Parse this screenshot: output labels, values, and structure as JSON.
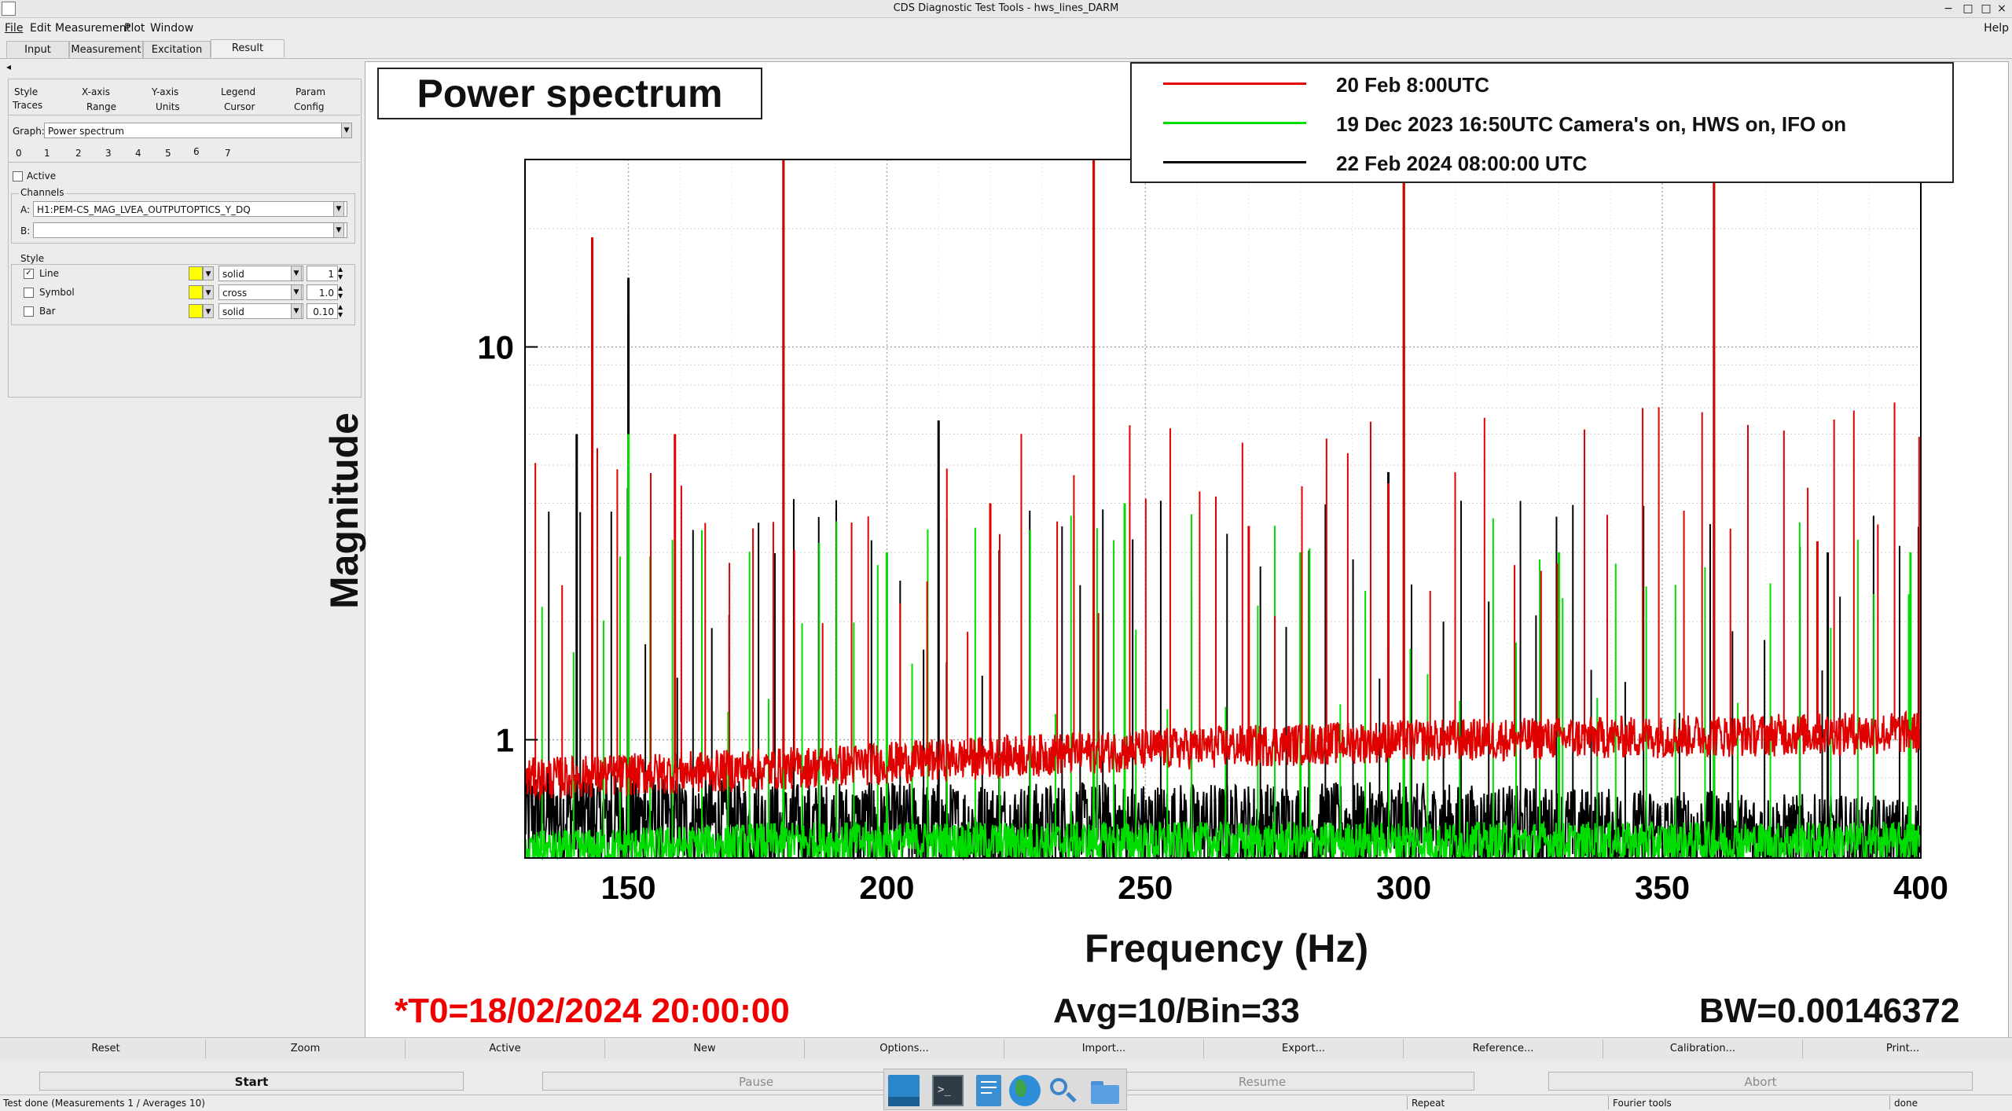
{
  "window": {
    "title": "CDS Diagnostic Test Tools - hws_lines_DARM",
    "minimize": "−",
    "maximize": "□",
    "restore": "□",
    "close": "×"
  },
  "menu": {
    "items": [
      "File",
      "Edit",
      "Measurement",
      "Plot",
      "Window"
    ],
    "help": "Help"
  },
  "tabs": [
    "Input",
    "Measurement",
    "Excitation",
    "Result"
  ],
  "left_panel": {
    "collapse_arrow": "◂",
    "option_tabs_row1": [
      "Style",
      "X-axis",
      "Y-axis",
      "Legend",
      "Param"
    ],
    "option_tabs_row2": [
      "Traces",
      "Range",
      "Units",
      "Cursor",
      "Config"
    ],
    "graph_label": "Graph:",
    "graph_value": "Power spectrum",
    "trace_numbers": [
      "0",
      "1",
      "2",
      "3",
      "4",
      "5",
      "6",
      "7"
    ],
    "active_label": "Active",
    "active_checked": false,
    "channels_label": "Channels",
    "channel_a_label": "A:",
    "channel_a_value": "H1:PEM-CS_MAG_LVEA_OUTPUTOPTICS_Y_DQ",
    "channel_b_label": "B:",
    "channel_b_value": "",
    "style_label": "Style",
    "style_rows": [
      {
        "label": "Line",
        "checked": true,
        "color": "#ffff00",
        "pattern": "solid",
        "size": "1"
      },
      {
        "label": "Symbol",
        "checked": false,
        "color": "#ffff00",
        "pattern": "cross",
        "size": "1.0"
      },
      {
        "label": "Bar",
        "checked": false,
        "color": "#ffff00",
        "pattern": "solid",
        "size": "0.10"
      }
    ]
  },
  "plot": {
    "title": "Power spectrum",
    "legend": [
      {
        "label": "20 Feb 8:00UTC",
        "color": "#e00000"
      },
      {
        "label": "19 Dec 2023 16:50UTC Camera's on, HWS on, IFO on",
        "color": "#00dd00"
      },
      {
        "label": "22 Feb 2024 08:00:00 UTC",
        "color": "#000000"
      }
    ],
    "t0": "*T0=18/02/2024 20:00:00",
    "avg": "Avg=10/Bin=33",
    "bw": "BW=0.00146372"
  },
  "chart_data": {
    "type": "line",
    "title": "Power spectrum",
    "xlabel": "Frequency (Hz)",
    "ylabel": "Magnitude",
    "xlim": [
      130,
      400
    ],
    "ylim": [
      0.5,
      30
    ],
    "y_scale": "log",
    "x_ticks": [
      150,
      200,
      250,
      300,
      350,
      400
    ],
    "y_ticks": [
      1,
      10
    ],
    "grid": true,
    "legend_position": "top-right",
    "series": [
      {
        "name": "20 Feb 8:00UTC",
        "color": "#e00000",
        "baseline": [
          [
            130,
            0.8
          ],
          [
            180,
            0.85
          ],
          [
            250,
            0.95
          ],
          [
            300,
            1.0
          ],
          [
            400,
            1.05
          ]
        ],
        "peaks": [
          [
            143,
            19
          ],
          [
            180,
            40
          ],
          [
            240,
            40
          ],
          [
            300,
            40
          ],
          [
            360,
            40
          ],
          [
            159,
            6
          ],
          [
            220,
            4
          ],
          [
            297,
            4.5
          ],
          [
            270,
            3.5
          ],
          [
            380,
            3.2
          ]
        ]
      },
      {
        "name": "19 Dec 2023 16:50UTC Camera's on, HWS on, IFO on",
        "color": "#00dd00",
        "baseline": [
          [
            130,
            0.52
          ],
          [
            180,
            0.55
          ],
          [
            300,
            0.55
          ],
          [
            400,
            0.55
          ]
        ],
        "peaks": [
          [
            180,
            40
          ],
          [
            240,
            40
          ],
          [
            300,
            40
          ],
          [
            360,
            40
          ],
          [
            150,
            6
          ],
          [
            200,
            3
          ],
          [
            246,
            4
          ],
          [
            280,
            3
          ],
          [
            330,
            3
          ],
          [
            398,
            3
          ]
        ]
      },
      {
        "name": "22 Feb 2024 08:00:00 UTC",
        "color": "#000000",
        "baseline": [
          [
            130,
            0.65
          ],
          [
            180,
            0.6
          ],
          [
            300,
            0.6
          ],
          [
            400,
            0.55
          ]
        ],
        "peaks": [
          [
            150,
            15
          ],
          [
            180,
            40
          ],
          [
            210,
            6.5
          ],
          [
            240,
            40
          ],
          [
            297,
            4.8
          ],
          [
            300,
            40
          ],
          [
            360,
            40
          ],
          [
            382,
            3
          ],
          [
            150,
            12
          ],
          [
            140,
            6
          ]
        ]
      }
    ]
  },
  "toolbar": [
    "Reset",
    "Zoom",
    "Active",
    "New",
    "Options...",
    "Import...",
    "Export...",
    "Reference...",
    "Calibration...",
    "Print..."
  ],
  "controls": [
    "Start",
    "Pause",
    "Resume",
    "Abort"
  ],
  "status": {
    "message": "Test done (Measurements 1 / Averages 10)",
    "repeat": "Repeat",
    "tool": "Fourier tools",
    "state": "done"
  },
  "dock": [
    "desktop-icon",
    "terminal-icon",
    "text-editor-icon",
    "browser-globe-icon",
    "search-magnifier-icon",
    "file-manager-folder-icon"
  ]
}
